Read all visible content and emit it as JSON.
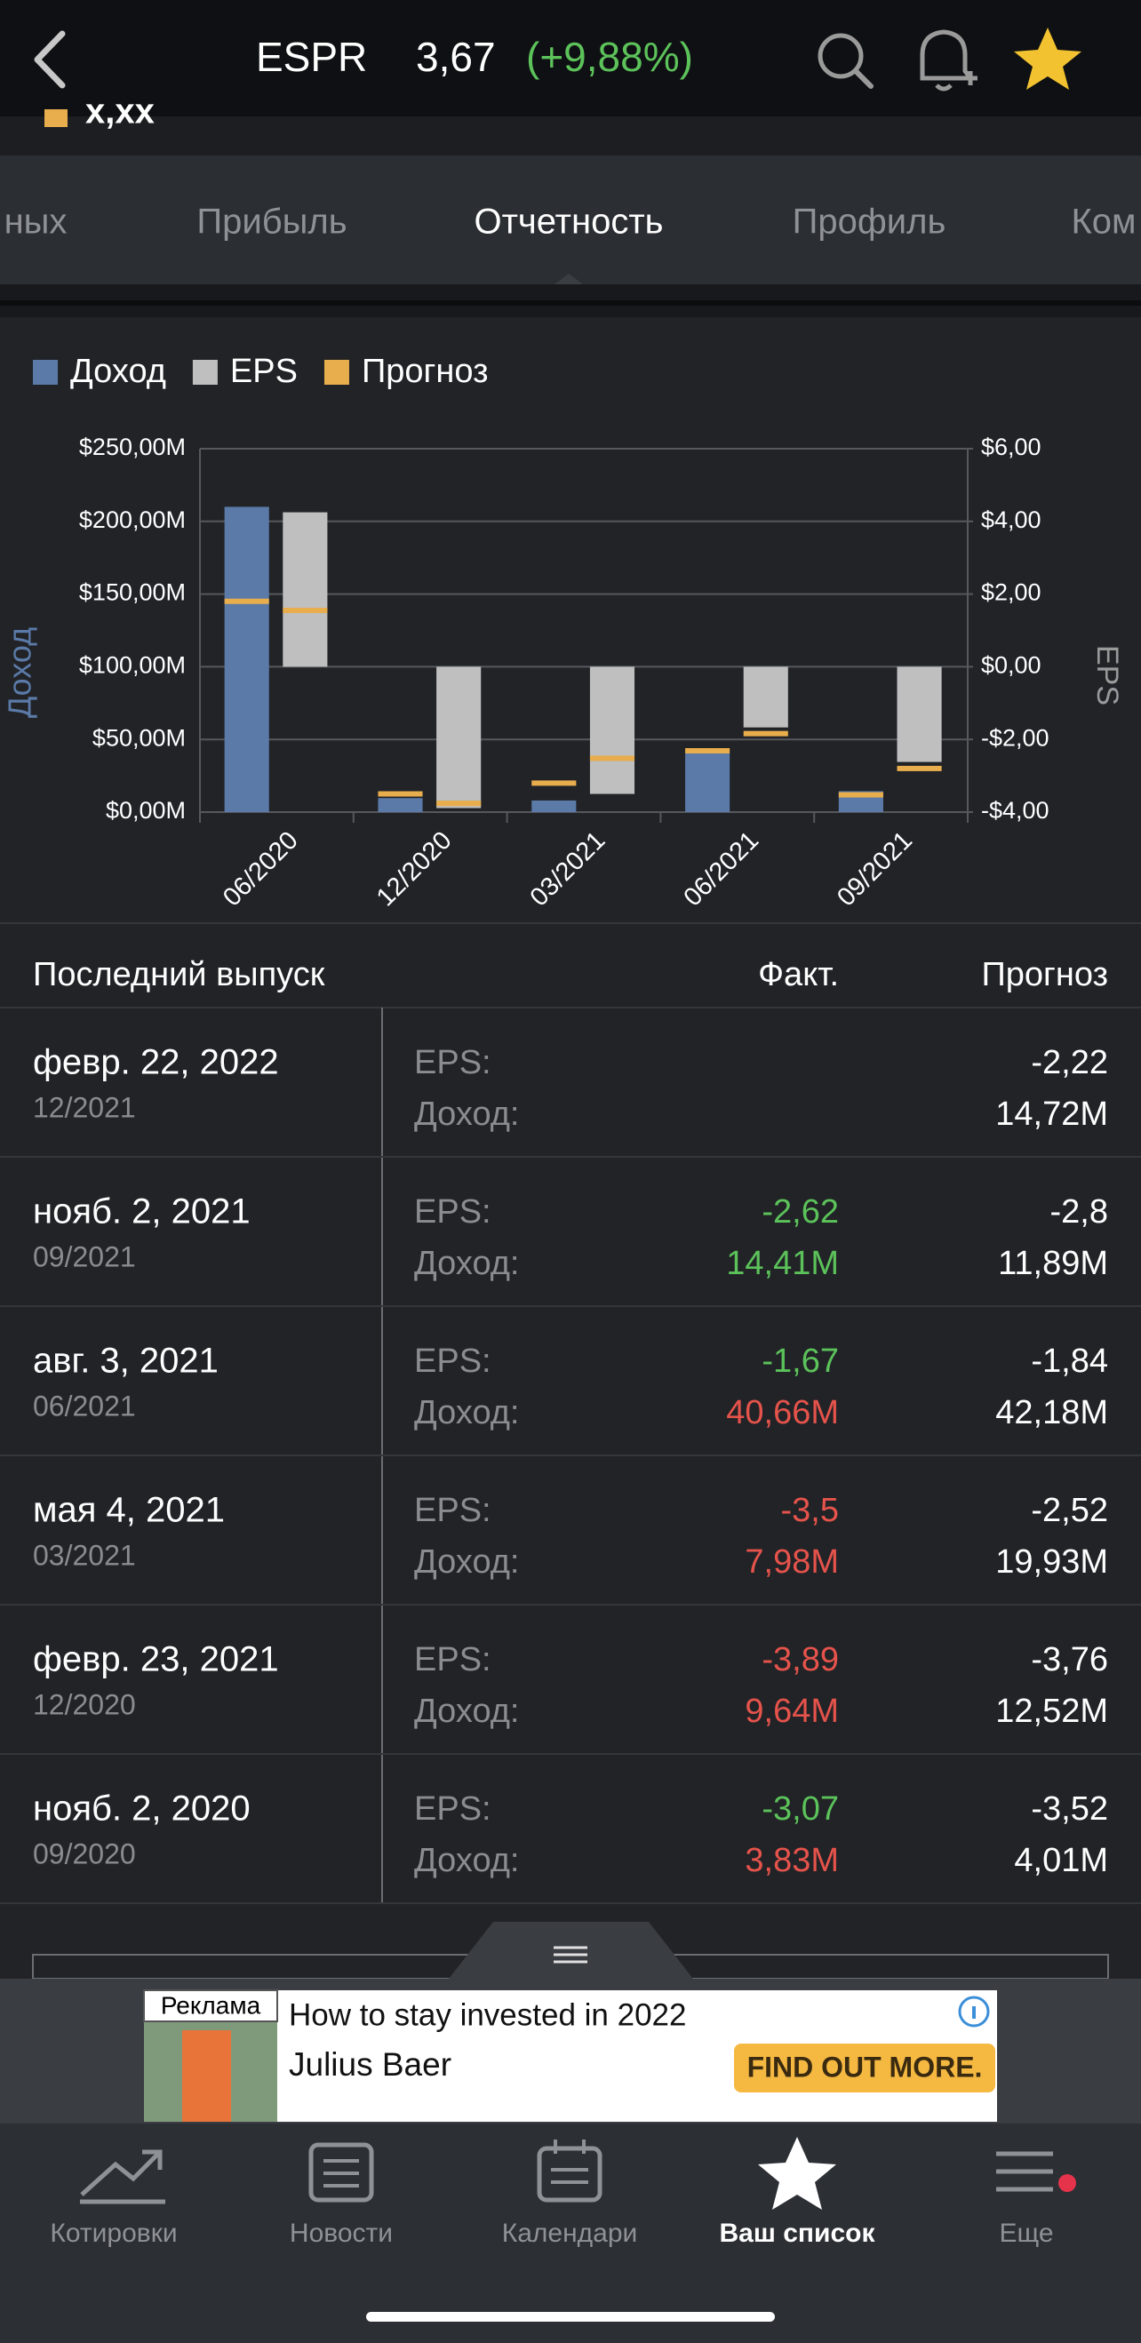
{
  "header": {
    "ticker": "ESPR",
    "price": "3,67",
    "change": "(+9,88%)",
    "sub_value": "x,xx"
  },
  "tabs": {
    "items": [
      "ных",
      "Прибыль",
      "Отчетность",
      "Профиль",
      "Ком"
    ],
    "active": 2
  },
  "chart_data": {
    "type": "bar",
    "y_label": "Доход",
    "y2_label": "EPS",
    "categories": [
      "06/2020",
      "12/2020",
      "03/2021",
      "06/2021",
      "09/2021"
    ],
    "series": [
      {
        "name": "Доход",
        "color": "#5b7aa8",
        "values": [
          210,
          9.64,
          7.98,
          40.66,
          14.41
        ]
      },
      {
        "name": "EPS",
        "color": "#bfbfbf",
        "axis": "y2",
        "values": [
          4.25,
          -3.89,
          -3.5,
          -1.67,
          -2.62
        ]
      },
      {
        "name": "Прогноз",
        "color": "#e8ad4c",
        "values": [
          145,
          12.52,
          19.93,
          42.18,
          11.89
        ],
        "y2_values": [
          1.55,
          -3.76,
          -2.52,
          -1.84,
          -2.8
        ]
      }
    ],
    "ylim": [
      0,
      250
    ],
    "yticks": [
      {
        "value": 0,
        "label": "$0,00M"
      },
      {
        "value": 50,
        "label": "$50,00M"
      },
      {
        "value": 100,
        "label": "$100,00M"
      },
      {
        "value": 150,
        "label": "$150,00M"
      },
      {
        "value": 200,
        "label": "$200,00M"
      },
      {
        "value": 250,
        "label": "$250,00M"
      }
    ],
    "y2lim": [
      -4,
      6
    ],
    "y2ticks": [
      {
        "value": -4,
        "label": "-$4,00"
      },
      {
        "value": -2,
        "label": "-$2,00"
      },
      {
        "value": 0,
        "label": "$0,00"
      },
      {
        "value": 2,
        "label": "$2,00"
      },
      {
        "value": 4,
        "label": "$4,00"
      },
      {
        "value": 6,
        "label": "$6,00"
      }
    ],
    "grid": true,
    "legend": "top-left"
  },
  "table": {
    "columns": [
      "Последний выпуск",
      "Факт.",
      "Прогноз"
    ],
    "rows": [
      {
        "date": "февр. 22, 2022",
        "period": "12/2021",
        "eps_label": "EPS:",
        "revenue_label": "Доход:",
        "eps_forecast": "-2,22",
        "revenue_forecast": "14,72M"
      },
      {
        "date": "нояб. 2, 2021",
        "period": "09/2021",
        "eps_label": "EPS:",
        "revenue_label": "Доход:",
        "eps_fact": "-2,62",
        "eps_fact_color": "#5cc25a",
        "revenue_fact": "14,41M",
        "revenue_fact_color": "#5cc25a",
        "eps_forecast": "-2,8",
        "revenue_forecast": "11,89M"
      },
      {
        "date": "авг. 3, 2021",
        "period": "06/2021",
        "eps_label": "EPS:",
        "revenue_label": "Доход:",
        "eps_fact": "-1,67",
        "eps_fact_color": "#5cc25a",
        "revenue_fact": "40,66M",
        "revenue_fact_color": "#e5534b",
        "eps_forecast": "-1,84",
        "revenue_forecast": "42,18M"
      },
      {
        "date": "мая 4, 2021",
        "period": "03/2021",
        "eps_label": "EPS:",
        "revenue_label": "Доход:",
        "eps_fact": "-3,5",
        "eps_fact_color": "#e5534b",
        "revenue_fact": "7,98M",
        "revenue_fact_color": "#e5534b",
        "eps_forecast": "-2,52",
        "revenue_forecast": "19,93M"
      },
      {
        "date": "февр. 23, 2021",
        "period": "12/2020",
        "eps_label": "EPS:",
        "revenue_label": "Доход:",
        "eps_fact": "-3,89",
        "eps_fact_color": "#e5534b",
        "revenue_fact": "9,64M",
        "revenue_fact_color": "#e5534b",
        "eps_forecast": "-3,76",
        "revenue_forecast": "12,52M"
      },
      {
        "date": "нояб. 2, 2020",
        "period": "09/2020",
        "eps_label": "EPS:",
        "revenue_label": "Доход:",
        "eps_fact": "-3,07",
        "eps_fact_color": "#5cc25a",
        "revenue_fact": "3,83M",
        "revenue_fact_color": "#e5534b",
        "eps_forecast": "-3,52",
        "revenue_forecast": "4,01M"
      }
    ]
  },
  "ad": {
    "badge": "Реклама",
    "headline": "How to stay invested in 2022",
    "advertiser": "Julius Baer",
    "button": "FIND OUT MORE."
  },
  "nav": {
    "items": [
      "Котировки",
      "Новости",
      "Календари",
      "Ваш список",
      "Еще"
    ],
    "active": 3
  }
}
